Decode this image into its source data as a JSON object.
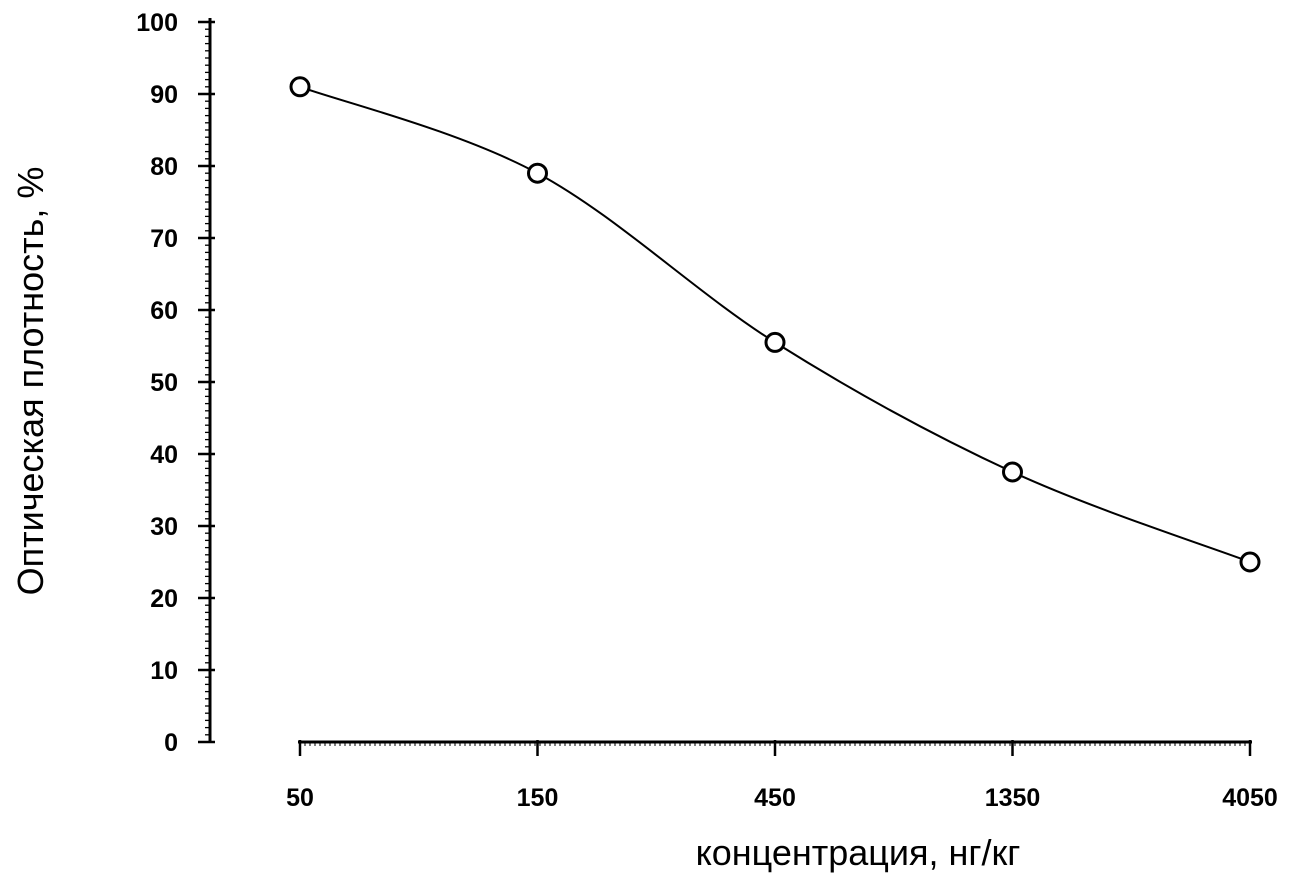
{
  "chart_data": {
    "type": "line",
    "title": "",
    "xlabel": "концентрация, нг/кг",
    "ylabel": "Оптическая плотность, %",
    "x_scale": "log",
    "x": [
      50,
      150,
      450,
      1350,
      4050
    ],
    "x_tick_labels": [
      "50",
      "150",
      "450",
      "1350",
      "4050"
    ],
    "y_ticks": [
      0,
      10,
      20,
      30,
      40,
      50,
      60,
      70,
      80,
      90,
      100
    ],
    "y_tick_labels": [
      "0",
      "10",
      "20",
      "30",
      "40",
      "50",
      "60",
      "70",
      "80",
      "90",
      "100"
    ],
    "ylim": [
      0,
      100
    ],
    "grid": false,
    "series": [
      {
        "values": [
          91,
          79,
          55.5,
          37.5,
          25
        ],
        "marker": "open-circle",
        "line": "smooth",
        "color": "#000000"
      }
    ]
  }
}
